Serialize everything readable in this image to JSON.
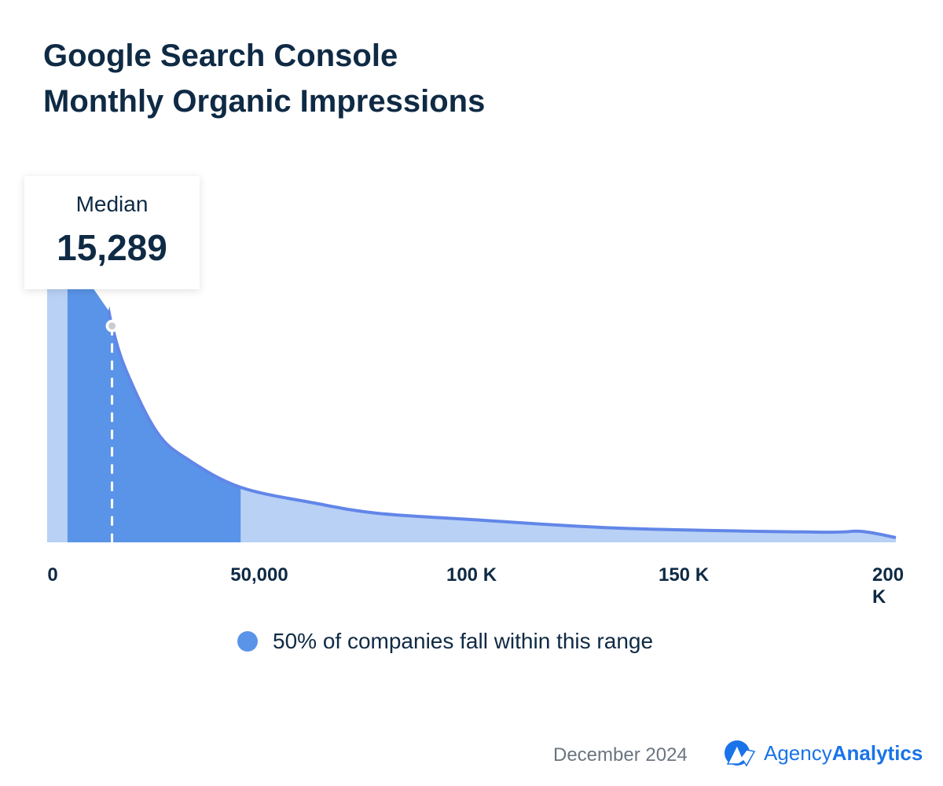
{
  "title_line1": "Google Search Console",
  "title_line2": "Monthly Organic Impressions",
  "chart_data": {
    "type": "area",
    "title": "Google Search Console Monthly Organic Impressions",
    "xlabel": "",
    "ylabel": "",
    "xlim": [
      0,
      200000
    ],
    "x_ticks": [
      "0",
      "50,000",
      "100 K",
      "150 K",
      "200 K"
    ],
    "x_tick_values": [
      0,
      50000,
      100000,
      150000,
      200000
    ],
    "x": [
      0,
      4800,
      11100,
      13900,
      15300,
      18500,
      25900,
      33300,
      45600,
      63000,
      77800,
      100000,
      135000,
      181500,
      191700,
      200000
    ],
    "density": [
      440,
      390,
      330,
      307,
      275,
      220,
      140,
      105,
      70,
      50,
      37,
      29,
      18,
      13,
      14,
      6
    ],
    "highlight_range": [
      4800,
      45600
    ],
    "median": 15289,
    "median_label": "Median",
    "median_value_text": "15,289",
    "legend": "50% of companies fall within this range",
    "colors": {
      "light": "#b8d1f5",
      "dark": "#5a94e8",
      "line": "#6286e8"
    }
  },
  "footer": {
    "date": "December 2024",
    "brand_a": "Agency",
    "brand_b": "Analytics",
    "brand_color": "#1a73e8"
  }
}
